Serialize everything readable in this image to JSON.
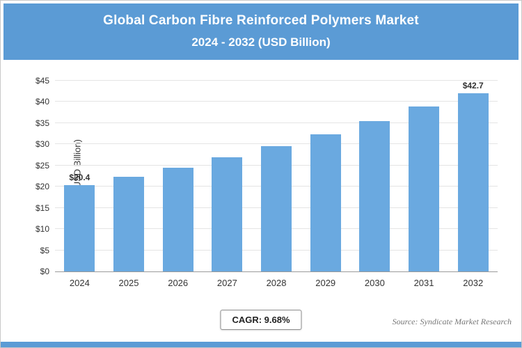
{
  "header": {
    "title_line1": "Global Carbon Fibre Reinforced Polymers Market",
    "title_line2": "2024 - 2032 (USD Billion)"
  },
  "chart_data": {
    "type": "bar",
    "title": "Global Carbon Fibre Reinforced Polymers Market 2024 - 2032 (USD Billion)",
    "categories": [
      "2024",
      "2025",
      "2026",
      "2027",
      "2028",
      "2029",
      "2030",
      "2031",
      "2032"
    ],
    "values": [
      20.4,
      22.4,
      24.5,
      26.9,
      29.5,
      32.4,
      35.5,
      39.0,
      42.7
    ],
    "bar_labels": [
      "$20.4",
      "",
      "",
      "",
      "",
      "",
      "",
      "",
      "$42.7"
    ],
    "xlabel": "",
    "ylabel": "Market Size (USD Billion)",
    "ylim": [
      0,
      45
    ],
    "ytick_labels": [
      "$0",
      "$5",
      "$10",
      "$15",
      "$20",
      "$25",
      "$30",
      "$35",
      "$40",
      "$45"
    ],
    "grid": true,
    "legend": "none",
    "bar_color": "#6aa9e0"
  },
  "footer": {
    "cagr_label": "CAGR: 9.68%",
    "source": "Source: Syndicate Market Research"
  },
  "colors": {
    "accent": "#5b9bd5",
    "grid": "#e4e4e4"
  }
}
